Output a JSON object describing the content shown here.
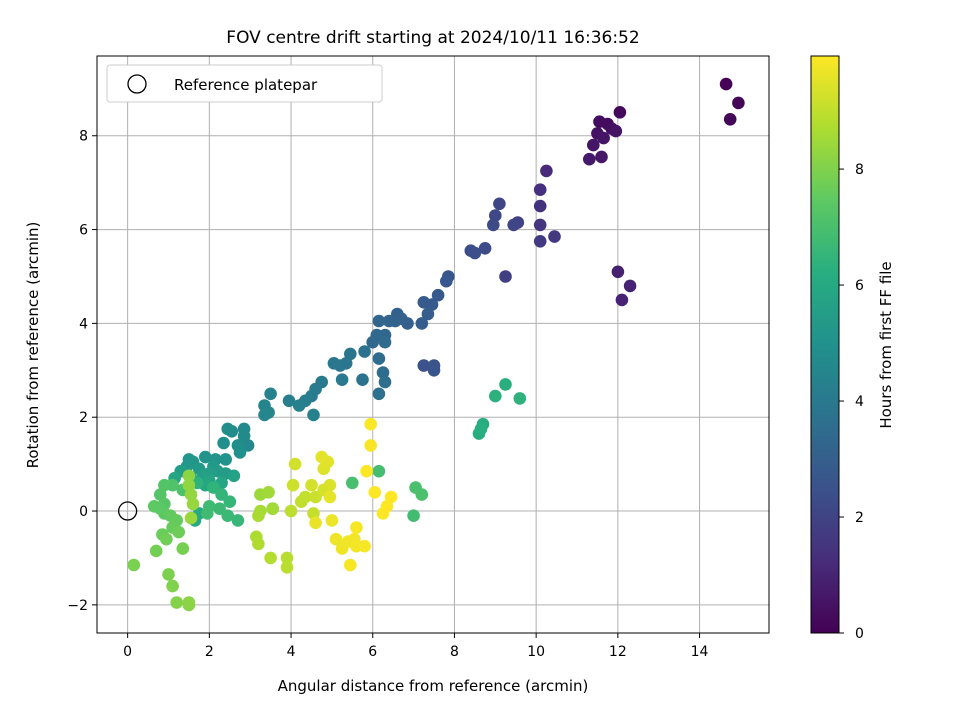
{
  "chart_data": {
    "type": "scatter",
    "title": "FOV centre drift starting at 2024/10/11 16:36:52",
    "xlabel": "Angular distance from reference (arcmin)",
    "ylabel": "Rotation from reference (arcmin)",
    "xlim": [
      -0.75,
      15.7
    ],
    "ylim": [
      -2.6,
      9.7
    ],
    "x_ticks": [
      0,
      2,
      4,
      6,
      8,
      10,
      12,
      14
    ],
    "y_ticks": [
      -2,
      0,
      2,
      4,
      6,
      8
    ],
    "grid": true,
    "legend": {
      "placement": "upper-left",
      "entries": [
        "Reference platepar"
      ]
    },
    "reference_point": {
      "x": 0,
      "y": 0,
      "marker": "open-circle"
    },
    "colorbar": {
      "label": "Hours from first FF file",
      "min": 0,
      "max": 9.95,
      "ticks": [
        0,
        2,
        4,
        6,
        8
      ],
      "colormap": "viridis"
    },
    "series": [
      {
        "points": [
          [
            14.65,
            9.1,
            0.05
          ],
          [
            14.95,
            8.7,
            0.1
          ],
          [
            14.75,
            8.35,
            0.15
          ],
          [
            12.05,
            8.5,
            0.25
          ],
          [
            11.75,
            8.25,
            0.3
          ],
          [
            11.55,
            8.3,
            0.35
          ],
          [
            11.85,
            8.15,
            0.4
          ],
          [
            11.5,
            8.05,
            0.45
          ],
          [
            11.95,
            8.1,
            0.5
          ],
          [
            11.65,
            7.95,
            0.55
          ],
          [
            11.4,
            7.8,
            0.6
          ],
          [
            11.6,
            7.55,
            0.65
          ],
          [
            11.3,
            7.5,
            0.7
          ],
          [
            12.0,
            5.1,
            0.9
          ],
          [
            12.3,
            4.8,
            0.95
          ],
          [
            12.1,
            4.5,
            1.0
          ],
          [
            10.25,
            7.25,
            1.2
          ],
          [
            10.1,
            6.85,
            1.3
          ],
          [
            10.1,
            6.5,
            1.4
          ],
          [
            10.1,
            6.1,
            1.5
          ],
          [
            10.45,
            5.85,
            1.6
          ],
          [
            10.1,
            5.75,
            1.7
          ],
          [
            9.25,
            5.0,
            1.8
          ],
          [
            9.55,
            6.15,
            2.0
          ],
          [
            9.45,
            6.1,
            2.05
          ],
          [
            9.1,
            6.55,
            2.1
          ],
          [
            9.0,
            6.3,
            2.15
          ],
          [
            8.95,
            6.1,
            2.2
          ],
          [
            8.75,
            5.6,
            2.3
          ],
          [
            8.4,
            5.55,
            2.35
          ],
          [
            8.5,
            5.5,
            2.4
          ],
          [
            7.25,
            3.1,
            2.5
          ],
          [
            7.5,
            3.1,
            2.55
          ],
          [
            7.5,
            3.0,
            2.6
          ],
          [
            7.85,
            5.0,
            2.65
          ],
          [
            7.8,
            4.9,
            2.7
          ],
          [
            7.6,
            4.6,
            2.75
          ],
          [
            7.45,
            4.4,
            2.8
          ],
          [
            7.25,
            4.45,
            2.85
          ],
          [
            7.35,
            4.2,
            2.9
          ],
          [
            7.2,
            4.0,
            2.95
          ],
          [
            6.85,
            4.0,
            3.0
          ],
          [
            6.6,
            4.2,
            3.05
          ],
          [
            6.7,
            4.1,
            3.1
          ],
          [
            6.55,
            4.05,
            3.15
          ],
          [
            6.4,
            4.05,
            3.2
          ],
          [
            6.15,
            4.05,
            3.25
          ],
          [
            6.3,
            3.75,
            3.3
          ],
          [
            6.1,
            3.75,
            3.35
          ],
          [
            6.0,
            3.6,
            3.4
          ],
          [
            6.3,
            3.6,
            3.45
          ],
          [
            6.15,
            3.25,
            3.5
          ],
          [
            6.25,
            2.95,
            3.55
          ],
          [
            6.3,
            2.75,
            3.6
          ],
          [
            6.15,
            2.5,
            3.65
          ],
          [
            5.8,
            3.4,
            3.7
          ],
          [
            5.75,
            2.8,
            3.75
          ],
          [
            5.45,
            3.35,
            3.8
          ],
          [
            5.35,
            3.15,
            3.85
          ],
          [
            5.2,
            3.1,
            3.9
          ],
          [
            5.05,
            3.15,
            3.95
          ],
          [
            5.25,
            2.8,
            4.0
          ],
          [
            4.75,
            2.75,
            4.05
          ],
          [
            4.6,
            2.6,
            4.1
          ],
          [
            4.5,
            2.45,
            4.15
          ],
          [
            4.35,
            2.35,
            4.2
          ],
          [
            3.95,
            2.35,
            4.25
          ],
          [
            4.2,
            2.25,
            4.3
          ],
          [
            4.55,
            2.05,
            4.35
          ],
          [
            3.5,
            2.5,
            4.4
          ],
          [
            3.45,
            2.1,
            4.45
          ],
          [
            3.35,
            2.25,
            4.5
          ],
          [
            3.35,
            2.05,
            4.55
          ],
          [
            2.95,
            1.4,
            4.6
          ],
          [
            2.85,
            1.75,
            4.65
          ],
          [
            2.85,
            1.6,
            4.7
          ],
          [
            2.55,
            1.7,
            4.75
          ],
          [
            2.45,
            1.75,
            4.8
          ],
          [
            2.7,
            1.4,
            4.85
          ],
          [
            2.35,
            1.45,
            4.9
          ],
          [
            2.75,
            1.25,
            4.95
          ],
          [
            2.4,
            1.1,
            5.0
          ],
          [
            2.15,
            1.1,
            5.05
          ],
          [
            1.9,
            1.15,
            5.1
          ],
          [
            1.5,
            1.1,
            5.15
          ],
          [
            1.6,
            1.05,
            5.2
          ],
          [
            1.45,
            0.95,
            5.25
          ],
          [
            2.1,
            0.95,
            5.3
          ],
          [
            1.75,
            0.9,
            5.35
          ],
          [
            2.2,
            0.85,
            5.4
          ],
          [
            2.4,
            0.8,
            5.45
          ],
          [
            1.3,
            0.85,
            5.5
          ],
          [
            2.0,
            0.8,
            5.55
          ],
          [
            1.85,
            0.75,
            5.6
          ],
          [
            2.6,
            0.75,
            5.65
          ],
          [
            1.55,
            0.7,
            5.7
          ],
          [
            2.0,
            0.65,
            5.75
          ],
          [
            1.15,
            0.7,
            5.8
          ],
          [
            2.3,
            0.6,
            5.85
          ],
          [
            1.9,
            0.55,
            5.9
          ],
          [
            1.65,
            -0.2,
            5.95
          ],
          [
            1.75,
            -0.05,
            6.0
          ],
          [
            3.55,
            0.05,
            6.05
          ],
          [
            8.7,
            1.85,
            6.1
          ],
          [
            8.6,
            1.65,
            6.15
          ],
          [
            8.65,
            1.75,
            6.2
          ],
          [
            9.25,
            2.7,
            6.25
          ],
          [
            9.0,
            2.45,
            6.3
          ],
          [
            9.6,
            2.4,
            6.35
          ],
          [
            1.7,
            0.6,
            6.4
          ],
          [
            2.1,
            0.5,
            6.45
          ],
          [
            2.3,
            0.35,
            6.5
          ],
          [
            2.5,
            0.2,
            6.55
          ],
          [
            2.7,
            -0.2,
            6.6
          ],
          [
            2.45,
            -0.1,
            6.65
          ],
          [
            2.25,
            0.05,
            6.7
          ],
          [
            2.0,
            0.1,
            6.75
          ],
          [
            1.95,
            -0.05,
            6.8
          ],
          [
            7.0,
            -0.1,
            6.85
          ],
          [
            6.15,
            0.85,
            6.9
          ],
          [
            5.5,
            0.6,
            6.95
          ],
          [
            7.05,
            0.5,
            7.0
          ],
          [
            7.2,
            0.35,
            7.05
          ],
          [
            1.35,
            0.45,
            7.1
          ],
          [
            1.1,
            0.55,
            7.15
          ],
          [
            0.9,
            0.55,
            7.2
          ],
          [
            0.8,
            0.35,
            7.25
          ],
          [
            0.9,
            0.15,
            7.3
          ],
          [
            0.8,
            0.05,
            7.35
          ],
          [
            0.9,
            -0.05,
            7.4
          ],
          [
            0.65,
            0.1,
            7.45
          ],
          [
            1.05,
            -0.1,
            7.5
          ],
          [
            1.2,
            -0.2,
            7.55
          ],
          [
            1.1,
            -0.35,
            7.6
          ],
          [
            0.85,
            -0.5,
            7.65
          ],
          [
            1.25,
            -0.45,
            7.7
          ],
          [
            0.95,
            -0.6,
            7.75
          ],
          [
            0.7,
            -0.85,
            7.8
          ],
          [
            1.35,
            -0.8,
            7.85
          ],
          [
            0.15,
            -1.15,
            7.9
          ],
          [
            1.0,
            -1.35,
            7.95
          ],
          [
            1.1,
            -1.6,
            8.0
          ],
          [
            1.2,
            -1.95,
            8.05
          ],
          [
            1.5,
            -2.0,
            8.1
          ],
          [
            1.5,
            -1.95,
            8.15
          ],
          [
            1.5,
            0.75,
            8.2
          ],
          [
            1.5,
            0.55,
            8.25
          ],
          [
            1.55,
            0.35,
            8.3
          ],
          [
            1.6,
            0.15,
            8.35
          ],
          [
            1.55,
            -0.15,
            8.4
          ],
          [
            3.25,
            0.35,
            8.45
          ],
          [
            3.45,
            0.4,
            8.5
          ],
          [
            3.55,
            0.05,
            8.55
          ],
          [
            3.25,
            0.0,
            8.6
          ],
          [
            3.2,
            -0.1,
            8.65
          ],
          [
            3.15,
            -0.55,
            8.7
          ],
          [
            3.2,
            -0.7,
            8.75
          ],
          [
            3.5,
            -1.0,
            8.8
          ],
          [
            3.9,
            -1.0,
            8.85
          ],
          [
            3.9,
            -1.2,
            8.9
          ],
          [
            4.0,
            0.0,
            8.95
          ],
          [
            4.25,
            0.2,
            9.0
          ],
          [
            4.35,
            0.3,
            9.05
          ],
          [
            4.55,
            -0.05,
            9.1
          ],
          [
            4.6,
            0.3,
            9.15
          ],
          [
            4.05,
            0.55,
            9.2
          ],
          [
            4.1,
            1.0,
            9.25
          ],
          [
            4.5,
            0.55,
            9.3
          ],
          [
            4.8,
            0.45,
            9.35
          ],
          [
            4.95,
            0.55,
            9.4
          ],
          [
            4.8,
            0.9,
            9.45
          ],
          [
            4.9,
            1.05,
            9.5
          ],
          [
            4.75,
            1.15,
            9.55
          ],
          [
            4.95,
            0.3,
            9.6
          ],
          [
            4.6,
            -0.25,
            9.65
          ],
          [
            5.0,
            -0.2,
            9.7
          ],
          [
            5.1,
            -0.6,
            9.72
          ],
          [
            5.25,
            -0.8,
            9.74
          ],
          [
            5.4,
            -0.65,
            9.76
          ],
          [
            5.55,
            -0.6,
            9.78
          ],
          [
            5.6,
            -0.75,
            9.8
          ],
          [
            5.45,
            -1.15,
            9.82
          ],
          [
            5.6,
            -0.35,
            9.84
          ],
          [
            5.8,
            -0.75,
            9.86
          ],
          [
            5.95,
            1.4,
            9.88
          ],
          [
            5.95,
            1.85,
            9.9
          ],
          [
            5.85,
            0.85,
            9.92
          ],
          [
            6.05,
            0.4,
            9.93
          ],
          [
            6.25,
            -0.05,
            9.94
          ],
          [
            6.35,
            0.1,
            9.95
          ],
          [
            6.45,
            0.3,
            9.95
          ]
        ]
      }
    ]
  }
}
